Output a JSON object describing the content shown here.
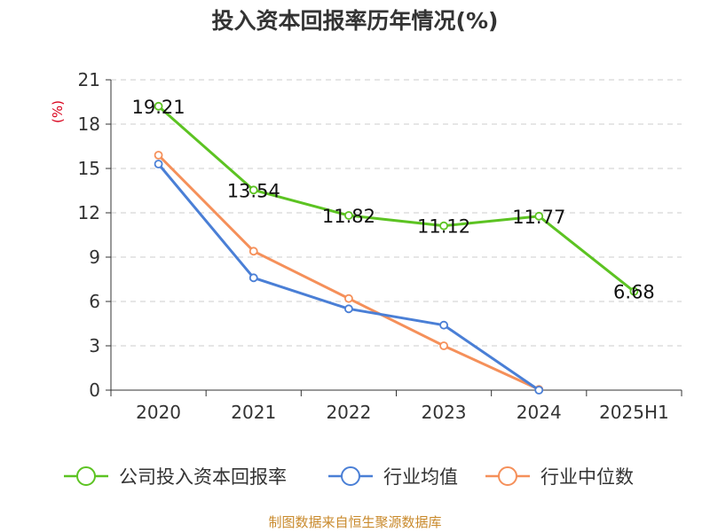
{
  "chart_data": {
    "type": "line",
    "title": "投入资本回报率历年情况(%)",
    "y_unit": "(%)",
    "categories": [
      "2020",
      "2021",
      "2022",
      "2023",
      "2024",
      "2025H1"
    ],
    "ylim": [
      0,
      21
    ],
    "yticks": [
      0,
      3,
      6,
      9,
      12,
      15,
      18,
      21
    ],
    "grid": true,
    "legend_position": "bottom",
    "series": [
      {
        "name": "公司投入资本回报率",
        "color": "#5cc322",
        "values": [
          19.21,
          13.54,
          11.82,
          11.12,
          11.77,
          6.68
        ],
        "labels": [
          "19.21",
          "13.54",
          "11.82",
          "11.12",
          "11.77",
          "6.68"
        ]
      },
      {
        "name": "行业均值",
        "color": "#4a7fd6",
        "values": [
          15.3,
          7.6,
          5.5,
          4.4,
          0.0,
          null
        ]
      },
      {
        "name": "行业中位数",
        "color": "#f5905a",
        "values": [
          15.9,
          9.4,
          6.2,
          3.0,
          0.05,
          null
        ]
      }
    ],
    "source": "制图数据来自恒生聚源数据库"
  }
}
